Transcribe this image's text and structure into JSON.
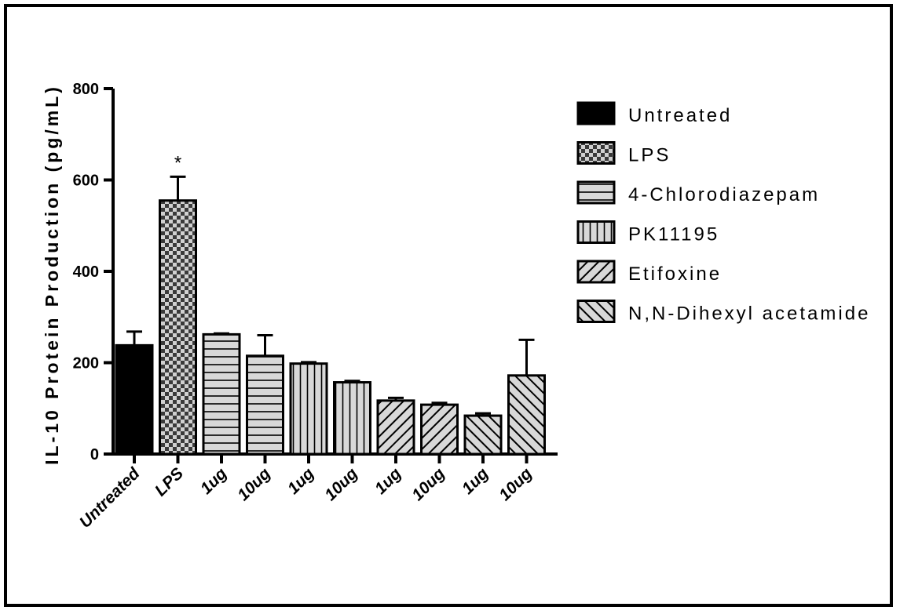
{
  "chart_data": {
    "type": "bar",
    "title": "",
    "ylabel": "IL-10 Protein Production (pg/mL)",
    "xlabel": "",
    "ylim": [
      0,
      800
    ],
    "yticks": [
      0,
      200,
      400,
      600,
      800
    ],
    "categories": [
      "Untreated",
      "LPS",
      "1ug",
      "10ug",
      "1ug",
      "10ug",
      "1ug",
      "10ug",
      "1ug",
      "10ug"
    ],
    "values": [
      238,
      555,
      262,
      215,
      198,
      157,
      117,
      108,
      84,
      172
    ],
    "errors": [
      30,
      52,
      2,
      45,
      3,
      3,
      6,
      4,
      5,
      78
    ],
    "groups": [
      0,
      1,
      2,
      2,
      3,
      3,
      4,
      4,
      5,
      5
    ],
    "annotations": [
      {
        "category_index": 1,
        "text": "*"
      }
    ],
    "legend": [
      {
        "label": "Untreated",
        "pattern": "solid-black"
      },
      {
        "label": "LPS",
        "pattern": "checker"
      },
      {
        "label": "4-Chlorodiazepam",
        "pattern": "horizontal-lines"
      },
      {
        "label": "PK11195",
        "pattern": "vertical-lines"
      },
      {
        "label": "Etifoxine",
        "pattern": "diagonal-forward"
      },
      {
        "label": "N,N-Dihexyl acetamide",
        "pattern": "diagonal-back"
      }
    ],
    "legend_position": "right",
    "grid": false
  }
}
